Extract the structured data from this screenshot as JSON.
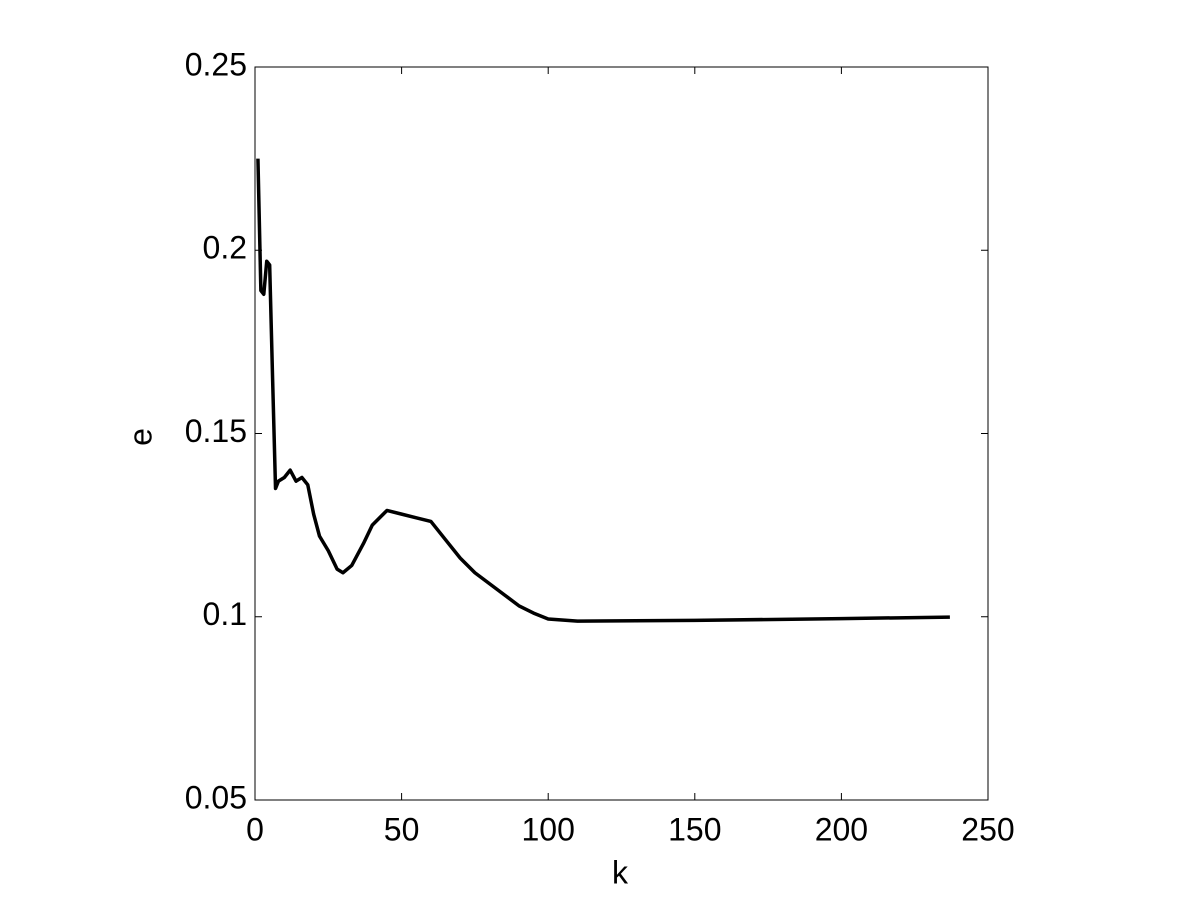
{
  "chart_data": {
    "type": "line",
    "xlabel": "k",
    "ylabel": "e",
    "x": [
      1,
      2,
      3,
      4,
      5,
      6,
      7,
      8,
      10,
      12,
      14,
      16,
      18,
      20,
      22,
      25,
      28,
      30,
      33,
      37,
      40,
      45,
      50,
      55,
      60,
      65,
      70,
      75,
      80,
      85,
      90,
      95,
      100,
      110,
      150,
      200,
      237
    ],
    "values": [
      0.225,
      0.189,
      0.188,
      0.197,
      0.196,
      0.165,
      0.135,
      0.137,
      0.138,
      0.14,
      0.137,
      0.138,
      0.136,
      0.128,
      0.122,
      0.118,
      0.113,
      0.112,
      0.114,
      0.12,
      0.125,
      0.129,
      0.128,
      0.127,
      0.126,
      0.121,
      0.116,
      0.112,
      0.109,
      0.106,
      0.103,
      0.101,
      0.0994,
      0.0988,
      0.099,
      0.0995,
      0.0999
    ],
    "color": "#000000",
    "xlim": [
      0,
      250
    ],
    "xticks": [
      0,
      50,
      100,
      150,
      200,
      250
    ],
    "ylim": [
      0.05,
      0.25
    ],
    "yticks": [
      0.05,
      0.1,
      0.15,
      0.2,
      0.25
    ],
    "grid": false
  }
}
